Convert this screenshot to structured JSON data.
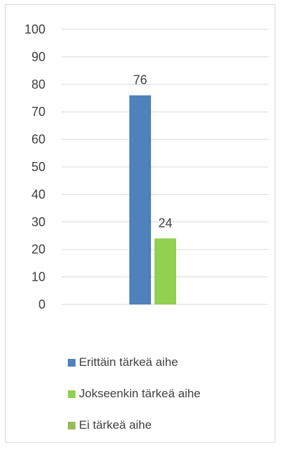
{
  "chart_data": {
    "type": "bar",
    "categories": [
      ""
    ],
    "series": [
      {
        "name": "Erittäin tärkeä aihe",
        "values": [
          76
        ],
        "color": "#4f81bd"
      },
      {
        "name": "Jokseenkin tärkeä aihe",
        "values": [
          24
        ],
        "color": "#92d050"
      },
      {
        "name": "Ei tärkeä aihe",
        "values": [
          0
        ],
        "color": "#9bbb59"
      }
    ],
    "data_labels": [
      "76",
      "24",
      ""
    ],
    "yticks": [
      "0",
      "10",
      "20",
      "30",
      "40",
      "50",
      "60",
      "70",
      "80",
      "90",
      "100"
    ],
    "ylim": [
      0,
      100
    ],
    "grid": true,
    "legend_position": "bottom"
  }
}
